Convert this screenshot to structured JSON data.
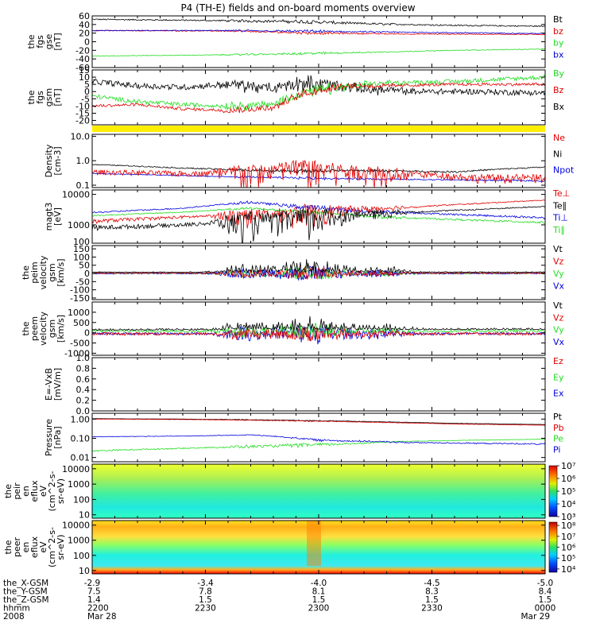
{
  "title": "P4 (TH-E) fields and on-board moments overview",
  "colors": {
    "black": "#000000",
    "red": "#e00000",
    "green": "#22dd22",
    "blue": "#0000dd",
    "yellow": "#ffee00"
  },
  "chart_data": [
    {
      "type": "line",
      "id": "p1",
      "ylabel": [
        "the",
        "fgs",
        "gse",
        "[nT]"
      ],
      "yticks": [
        "60",
        "40",
        "20",
        "0",
        "-20",
        "-40",
        "-60"
      ],
      "ylim": [
        -60,
        60
      ],
      "legend": [
        {
          "label": "Bt",
          "color": "black"
        },
        {
          "label": "bz",
          "color": "red"
        },
        {
          "label": "by",
          "color": "green"
        },
        {
          "label": "bx",
          "color": "blue"
        }
      ],
      "series": [
        {
          "color": "black",
          "anchors": [
            [
              0,
              52
            ],
            [
              0.2,
              50
            ],
            [
              0.45,
              47
            ],
            [
              0.6,
              42
            ],
            [
              0.8,
              38
            ],
            [
              1,
              36
            ]
          ],
          "noise": 1.5,
          "burst": 4
        },
        {
          "color": "red",
          "anchors": [
            [
              0,
              26
            ],
            [
              0.3,
              25
            ],
            [
              0.5,
              20
            ],
            [
              0.7,
              18
            ],
            [
              1,
              17
            ]
          ],
          "noise": 1,
          "burst": 3
        },
        {
          "color": "blue",
          "anchors": [
            [
              0,
              26
            ],
            [
              0.3,
              26
            ],
            [
              0.5,
              24
            ],
            [
              0.7,
              22
            ],
            [
              1,
              19
            ]
          ],
          "noise": 1,
          "burst": 3
        },
        {
          "color": "green",
          "anchors": [
            [
              0,
              -33
            ],
            [
              0.25,
              -31
            ],
            [
              0.45,
              -28
            ],
            [
              0.6,
              -25
            ],
            [
              0.8,
              -20
            ],
            [
              1,
              -17
            ]
          ],
          "noise": 0.8,
          "burst": 3
        }
      ]
    },
    {
      "type": "line",
      "id": "p2",
      "ylabel": [
        "the",
        "fgs",
        "gsm",
        "[nT]"
      ],
      "yticks": [
        "15",
        "10",
        "5",
        "0",
        "-5",
        "-10",
        "-15",
        "-20"
      ],
      "ylim": [
        -23,
        15
      ],
      "legend": [
        {
          "label": "By",
          "color": "green"
        },
        {
          "label": "Bz",
          "color": "red"
        },
        {
          "label": "Bx",
          "color": "black"
        }
      ],
      "series": [
        {
          "color": "black",
          "anchors": [
            [
              0,
              7
            ],
            [
              0.1,
              4
            ],
            [
              0.2,
              3
            ],
            [
              0.3,
              5
            ],
            [
              0.4,
              2
            ],
            [
              0.45,
              6
            ],
            [
              0.5,
              5
            ],
            [
              0.6,
              2
            ],
            [
              0.7,
              0
            ],
            [
              0.85,
              0
            ],
            [
              1,
              -1
            ]
          ],
          "noise": 2,
          "burst": 5
        },
        {
          "color": "green",
          "anchors": [
            [
              0,
              -3
            ],
            [
              0.1,
              -7
            ],
            [
              0.2,
              -9
            ],
            [
              0.3,
              -10
            ],
            [
              0.4,
              -9
            ],
            [
              0.45,
              -2
            ],
            [
              0.55,
              3
            ],
            [
              0.65,
              6
            ],
            [
              0.8,
              7
            ],
            [
              1,
              10
            ]
          ],
          "noise": 1.5,
          "burst": 4
        },
        {
          "color": "red",
          "anchors": [
            [
              0,
              -10
            ],
            [
              0.1,
              -9
            ],
            [
              0.2,
              -12
            ],
            [
              0.3,
              -13
            ],
            [
              0.4,
              -11
            ],
            [
              0.47,
              -1
            ],
            [
              0.55,
              4
            ],
            [
              0.65,
              4
            ],
            [
              0.8,
              5
            ],
            [
              1,
              5
            ]
          ],
          "noise": 1,
          "burst": 3
        }
      ]
    },
    {
      "type": "line",
      "id": "p3",
      "ylabel": [
        "Density",
        "[cm-3]"
      ],
      "yticks": [
        "10.0",
        "1.0",
        "0.1"
      ],
      "ylim": [
        0.08,
        12
      ],
      "log": true,
      "legend": [
        {
          "label": "Ne",
          "color": "red"
        },
        {
          "label": "Ni",
          "color": "black"
        },
        {
          "label": "Npot",
          "color": "blue"
        }
      ],
      "series": [
        {
          "color": "blue",
          "anchors": [
            [
              0,
              0.3
            ],
            [
              0.3,
              0.22
            ],
            [
              0.6,
              0.18
            ],
            [
              1,
              0.15
            ]
          ],
          "noise": 0.01,
          "burst": 0.02
        },
        {
          "color": "black",
          "anchors": [
            [
              0,
              0.7
            ],
            [
              0.2,
              0.5
            ],
            [
              0.4,
              0.38
            ],
            [
              0.6,
              0.4
            ],
            [
              0.8,
              0.35
            ],
            [
              1,
              0.55
            ]
          ],
          "noise": 0.03,
          "burst": 0.05
        },
        {
          "color": "red",
          "anchors": [
            [
              0,
              0.35
            ],
            [
              0.2,
              0.3
            ],
            [
              0.38,
              0.35
            ],
            [
              0.45,
              0.6
            ],
            [
              0.55,
              0.4
            ],
            [
              0.7,
              0.3
            ],
            [
              0.85,
              0.2
            ],
            [
              1,
              0.2
            ]
          ],
          "noise": 0.08,
          "burst": 0.6
        }
      ]
    },
    {
      "type": "line",
      "id": "p4",
      "ylabel": [
        "magt3",
        "[eV]"
      ],
      "yticks": [
        "10000",
        "1000"
      ],
      "ylim": [
        250,
        14000
      ],
      "log": true,
      "legend": [
        {
          "label": "Te⊥",
          "color": "red"
        },
        {
          "label": "Te∥",
          "color": "black"
        },
        {
          "label": "Ti⊥",
          "color": "blue"
        },
        {
          "label": "Ti∥",
          "color": "green"
        }
      ],
      "series": [
        {
          "color": "blue",
          "anchors": [
            [
              0,
              2500
            ],
            [
              0.2,
              3500
            ],
            [
              0.35,
              5500
            ],
            [
              0.45,
              4000
            ],
            [
              0.6,
              2800
            ],
            [
              0.8,
              2200
            ],
            [
              1,
              1700
            ]
          ],
          "noise": 150,
          "burst": 800
        },
        {
          "color": "green",
          "anchors": [
            [
              0,
              2000
            ],
            [
              0.2,
              2600
            ],
            [
              0.35,
              3500
            ],
            [
              0.5,
              2500
            ],
            [
              0.65,
              1800
            ],
            [
              0.85,
              1400
            ],
            [
              1,
              1200
            ]
          ],
          "noise": 100,
          "burst": 400
        },
        {
          "color": "red",
          "anchors": [
            [
              0,
              1300
            ],
            [
              0.2,
              1800
            ],
            [
              0.4,
              2300
            ],
            [
              0.55,
              3000
            ],
            [
              0.7,
              3800
            ],
            [
              0.85,
              5000
            ],
            [
              1,
              6500
            ]
          ],
          "noise": 200,
          "burst": 2000
        },
        {
          "color": "black",
          "anchors": [
            [
              0,
              800
            ],
            [
              0.2,
              1000
            ],
            [
              0.4,
              1500
            ],
            [
              0.55,
              2000
            ],
            [
              0.7,
              2600
            ],
            [
              0.85,
              3200
            ],
            [
              1,
              4000
            ]
          ],
          "noise": 150,
          "burst": 1800
        }
      ]
    },
    {
      "type": "line",
      "id": "p5",
      "ylabel": [
        "the",
        "peim",
        "velocity",
        "gsm",
        "[km/s]"
      ],
      "yticks": [
        "150",
        "100",
        "50",
        "0",
        "-50",
        "-100",
        "-150"
      ],
      "yticksTop": "100",
      "ylim": [
        -160,
        170
      ],
      "legend": [
        {
          "label": "Vt",
          "color": "black"
        },
        {
          "label": "Vz",
          "color": "red"
        },
        {
          "label": "Vy",
          "color": "green"
        },
        {
          "label": "Vx",
          "color": "blue"
        }
      ],
      "series": [
        {
          "color": "green",
          "anchors": [
            [
              0,
              0
            ],
            [
              1,
              0
            ]
          ],
          "noise": 4,
          "burst": 40
        },
        {
          "color": "blue",
          "anchors": [
            [
              0,
              0
            ],
            [
              1,
              0
            ]
          ],
          "noise": 4,
          "burst": 50
        },
        {
          "color": "red",
          "anchors": [
            [
              0,
              2
            ],
            [
              1,
              2
            ]
          ],
          "noise": 4,
          "burst": 40
        },
        {
          "color": "black",
          "anchors": [
            [
              0,
              6
            ],
            [
              1,
              6
            ]
          ],
          "noise": 5,
          "burst": 90,
          "positive": true
        }
      ]
    },
    {
      "type": "line",
      "id": "p6",
      "ylabel": [
        "the",
        "peem",
        "velocity",
        "gsm",
        "[km/s]"
      ],
      "yticks": [
        "1000",
        "500",
        "0",
        "-500",
        "-1000"
      ],
      "ylim": [
        -1100,
        1500
      ],
      "legend": [
        {
          "label": "Vt",
          "color": "black"
        },
        {
          "label": "Vz",
          "color": "red"
        },
        {
          "label": "Vy",
          "color": "green"
        },
        {
          "label": "Vx",
          "color": "blue"
        }
      ],
      "series": [
        {
          "color": "blue",
          "anchors": [
            [
              0,
              -50
            ],
            [
              1,
              -50
            ]
          ],
          "noise": 60,
          "burst": 500
        },
        {
          "color": "green",
          "anchors": [
            [
              0,
              80
            ],
            [
              1,
              80
            ]
          ],
          "noise": 60,
          "burst": 400
        },
        {
          "color": "red",
          "anchors": [
            [
              0,
              -50
            ],
            [
              1,
              -50
            ]
          ],
          "noise": 70,
          "burst": 400
        },
        {
          "color": "black",
          "anchors": [
            [
              0,
              120
            ],
            [
              1,
              150
            ]
          ],
          "noise": 80,
          "burst": 700,
          "positive": true
        }
      ]
    },
    {
      "type": "line",
      "id": "p7",
      "ylabel": [
        "E=-VxB",
        "[mV/m]"
      ],
      "yticks": [
        "1.0",
        "0.8",
        "0.6",
        "0.4",
        "0.2",
        "0.0"
      ],
      "ylim": [
        0,
        1
      ],
      "legend": [
        {
          "label": "Ez",
          "color": "red"
        },
        {
          "label": "Ey",
          "color": "green"
        },
        {
          "label": "Ex",
          "color": "blue"
        }
      ],
      "series": []
    },
    {
      "type": "line",
      "id": "p8",
      "ylabel": [
        "Pressure",
        "[nPa]"
      ],
      "yticks": [
        "1.00",
        "0.10",
        "0.01"
      ],
      "ylim": [
        0.006,
        2
      ],
      "log": true,
      "legend": [
        {
          "label": "Pt",
          "color": "black"
        },
        {
          "label": "Pb",
          "color": "red"
        },
        {
          "label": "Pe",
          "color": "green"
        },
        {
          "label": "Pi",
          "color": "blue"
        }
      ],
      "series": [
        {
          "color": "green",
          "anchors": [
            [
              0,
              0.022
            ],
            [
              0.2,
              0.03
            ],
            [
              0.4,
              0.04
            ],
            [
              0.55,
              0.05
            ],
            [
              0.7,
              0.07
            ],
            [
              0.85,
              0.08
            ],
            [
              1,
              0.09
            ]
          ],
          "noise": 0.002,
          "burst": 0.01
        },
        {
          "color": "blue",
          "anchors": [
            [
              0,
              0.12
            ],
            [
              0.2,
              0.13
            ],
            [
              0.35,
              0.15
            ],
            [
              0.5,
              0.08
            ],
            [
              0.7,
              0.06
            ],
            [
              1,
              0.05
            ]
          ],
          "noise": 0.004,
          "burst": 0.01
        },
        {
          "color": "black",
          "anchors": [
            [
              0,
              1.05
            ],
            [
              0.2,
              1.0
            ],
            [
              0.4,
              0.9
            ],
            [
              0.6,
              0.75
            ],
            [
              0.8,
              0.6
            ],
            [
              1,
              0.52
            ]
          ],
          "noise": 0.01,
          "burst": 0.05
        },
        {
          "color": "red",
          "anchors": [
            [
              0,
              1.0
            ],
            [
              0.2,
              0.95
            ],
            [
              0.4,
              0.85
            ],
            [
              0.6,
              0.7
            ],
            [
              0.8,
              0.55
            ],
            [
              1,
              0.48
            ]
          ],
          "noise": 0.01,
          "burst": 0.05
        }
      ]
    },
    {
      "type": "heatmap",
      "id": "p9",
      "ylabel": [
        "the",
        "peir",
        "en",
        "eflux",
        "eV",
        "(cm^2-s-",
        "sr-eV)"
      ],
      "yticks": [
        "10000",
        "1000",
        "100",
        "10"
      ],
      "ylim": [
        6,
        20000
      ],
      "cbar_ticks": [
        "10⁷",
        "10⁶",
        "10⁵",
        "10⁴",
        "10³"
      ],
      "cbar_range": [
        1000,
        10000000
      ]
    },
    {
      "type": "heatmap",
      "id": "p10",
      "ylabel": [
        "the",
        "peer",
        "en",
        "eflux",
        "eV",
        "(cm^2-s-",
        "sr-eV)"
      ],
      "yticks": [
        "10000",
        "1000",
        "100",
        "10"
      ],
      "ylim": [
        6,
        20000
      ],
      "cbar_ticks": [
        "10⁸",
        "10⁷",
        "10⁶",
        "10⁵",
        "10⁴"
      ],
      "cbar_range": [
        5000,
        200000000
      ]
    }
  ],
  "xaxis": {
    "ticks": [
      0,
      0.25,
      0.5,
      0.75,
      1
    ],
    "rows": [
      {
        "label": "the_X-GSM",
        "values": [
          "-2.9",
          "-3.4",
          "-4.0",
          "-4.5",
          "-5.0"
        ]
      },
      {
        "label": "the_Y-GSM",
        "values": [
          "7.5",
          "7.8",
          "8.1",
          "8.3",
          "8.4"
        ]
      },
      {
        "label": "the_Z-GSM",
        "values": [
          "1.4",
          "1.5",
          "1.5",
          "1.5",
          "1.5"
        ]
      },
      {
        "label": "hhmm",
        "values": [
          "2200",
          "2230",
          "2300",
          "2330",
          "0000"
        ]
      },
      {
        "label": "2008",
        "values": [
          "Mar 28",
          "",
          "",
          "",
          "Mar 29"
        ]
      }
    ]
  }
}
